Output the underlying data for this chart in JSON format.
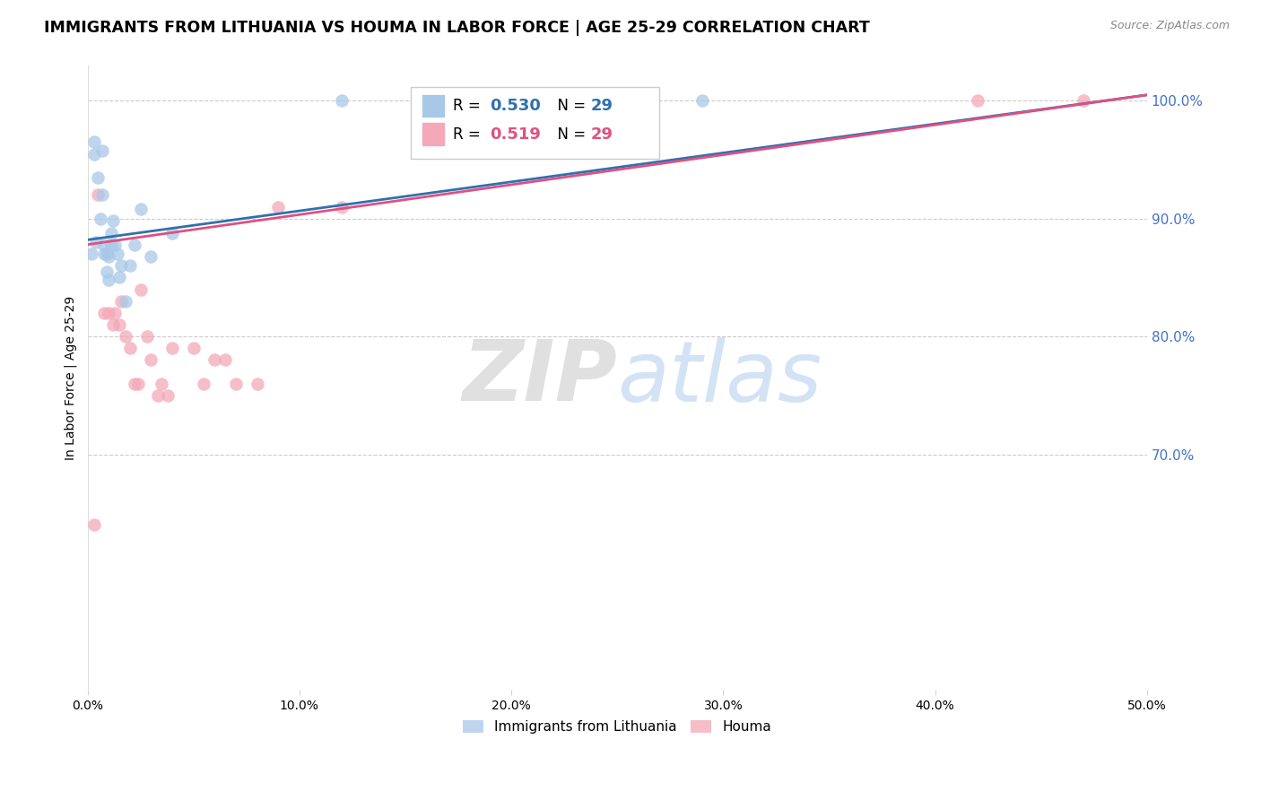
{
  "title": "IMMIGRANTS FROM LITHUANIA VS HOUMA IN LABOR FORCE | AGE 25-29 CORRELATION CHART",
  "source": "Source: ZipAtlas.com",
  "ylabel": "In Labor Force | Age 25-29",
  "xlabel": "",
  "xlim": [
    0.0,
    0.5
  ],
  "ylim": [
    0.5,
    1.03
  ],
  "xticks": [
    0.0,
    0.1,
    0.2,
    0.3,
    0.4,
    0.5
  ],
  "xtick_labels": [
    "0.0%",
    "10.0%",
    "20.0%",
    "30.0%",
    "40.0%",
    "50.0%"
  ],
  "yticks": [
    0.7,
    0.8,
    0.9,
    1.0
  ],
  "ytick_labels": [
    "70.0%",
    "80.0%",
    "90.0%",
    "100.0%"
  ],
  "blue_color": "#a8c8e8",
  "pink_color": "#f4a8b8",
  "blue_line_color": "#3070b0",
  "pink_line_color": "#e05080",
  "R_blue": 0.53,
  "N_blue": 29,
  "R_pink": 0.519,
  "N_pink": 29,
  "background_color": "#ffffff",
  "grid_color": "#cccccc",
  "watermark_zip": "ZIP",
  "watermark_atlas": "atlas",
  "right_label_color": "#4472c4",
  "blue_scatter_x": [
    0.002,
    0.003,
    0.003,
    0.004,
    0.005,
    0.006,
    0.007,
    0.007,
    0.008,
    0.008,
    0.009,
    0.009,
    0.01,
    0.01,
    0.011,
    0.011,
    0.012,
    0.013,
    0.014,
    0.015,
    0.016,
    0.018,
    0.02,
    0.022,
    0.025,
    0.03,
    0.04,
    0.12,
    0.29
  ],
  "blue_scatter_y": [
    0.87,
    0.955,
    0.965,
    0.88,
    0.935,
    0.9,
    0.92,
    0.958,
    0.87,
    0.878,
    0.855,
    0.87,
    0.848,
    0.868,
    0.878,
    0.888,
    0.898,
    0.878,
    0.87,
    0.85,
    0.86,
    0.83,
    0.86,
    0.878,
    0.908,
    0.868,
    0.888,
    1.0,
    1.0
  ],
  "pink_scatter_x": [
    0.003,
    0.005,
    0.008,
    0.01,
    0.012,
    0.013,
    0.015,
    0.016,
    0.018,
    0.02,
    0.022,
    0.024,
    0.025,
    0.028,
    0.03,
    0.033,
    0.035,
    0.038,
    0.04,
    0.05,
    0.055,
    0.06,
    0.065,
    0.07,
    0.08,
    0.09,
    0.12,
    0.42,
    0.47
  ],
  "pink_scatter_y": [
    0.64,
    0.92,
    0.82,
    0.82,
    0.81,
    0.82,
    0.81,
    0.83,
    0.8,
    0.79,
    0.76,
    0.76,
    0.84,
    0.8,
    0.78,
    0.75,
    0.76,
    0.75,
    0.79,
    0.79,
    0.76,
    0.78,
    0.78,
    0.76,
    0.76,
    0.91,
    0.91,
    1.0,
    1.0
  ],
  "blue_line_x0": 0.0,
  "blue_line_y0": 0.882,
  "blue_line_x1": 0.5,
  "blue_line_y1": 1.005,
  "pink_line_x0": 0.0,
  "pink_line_y0": 0.878,
  "pink_line_x1": 0.5,
  "pink_line_y1": 1.005
}
